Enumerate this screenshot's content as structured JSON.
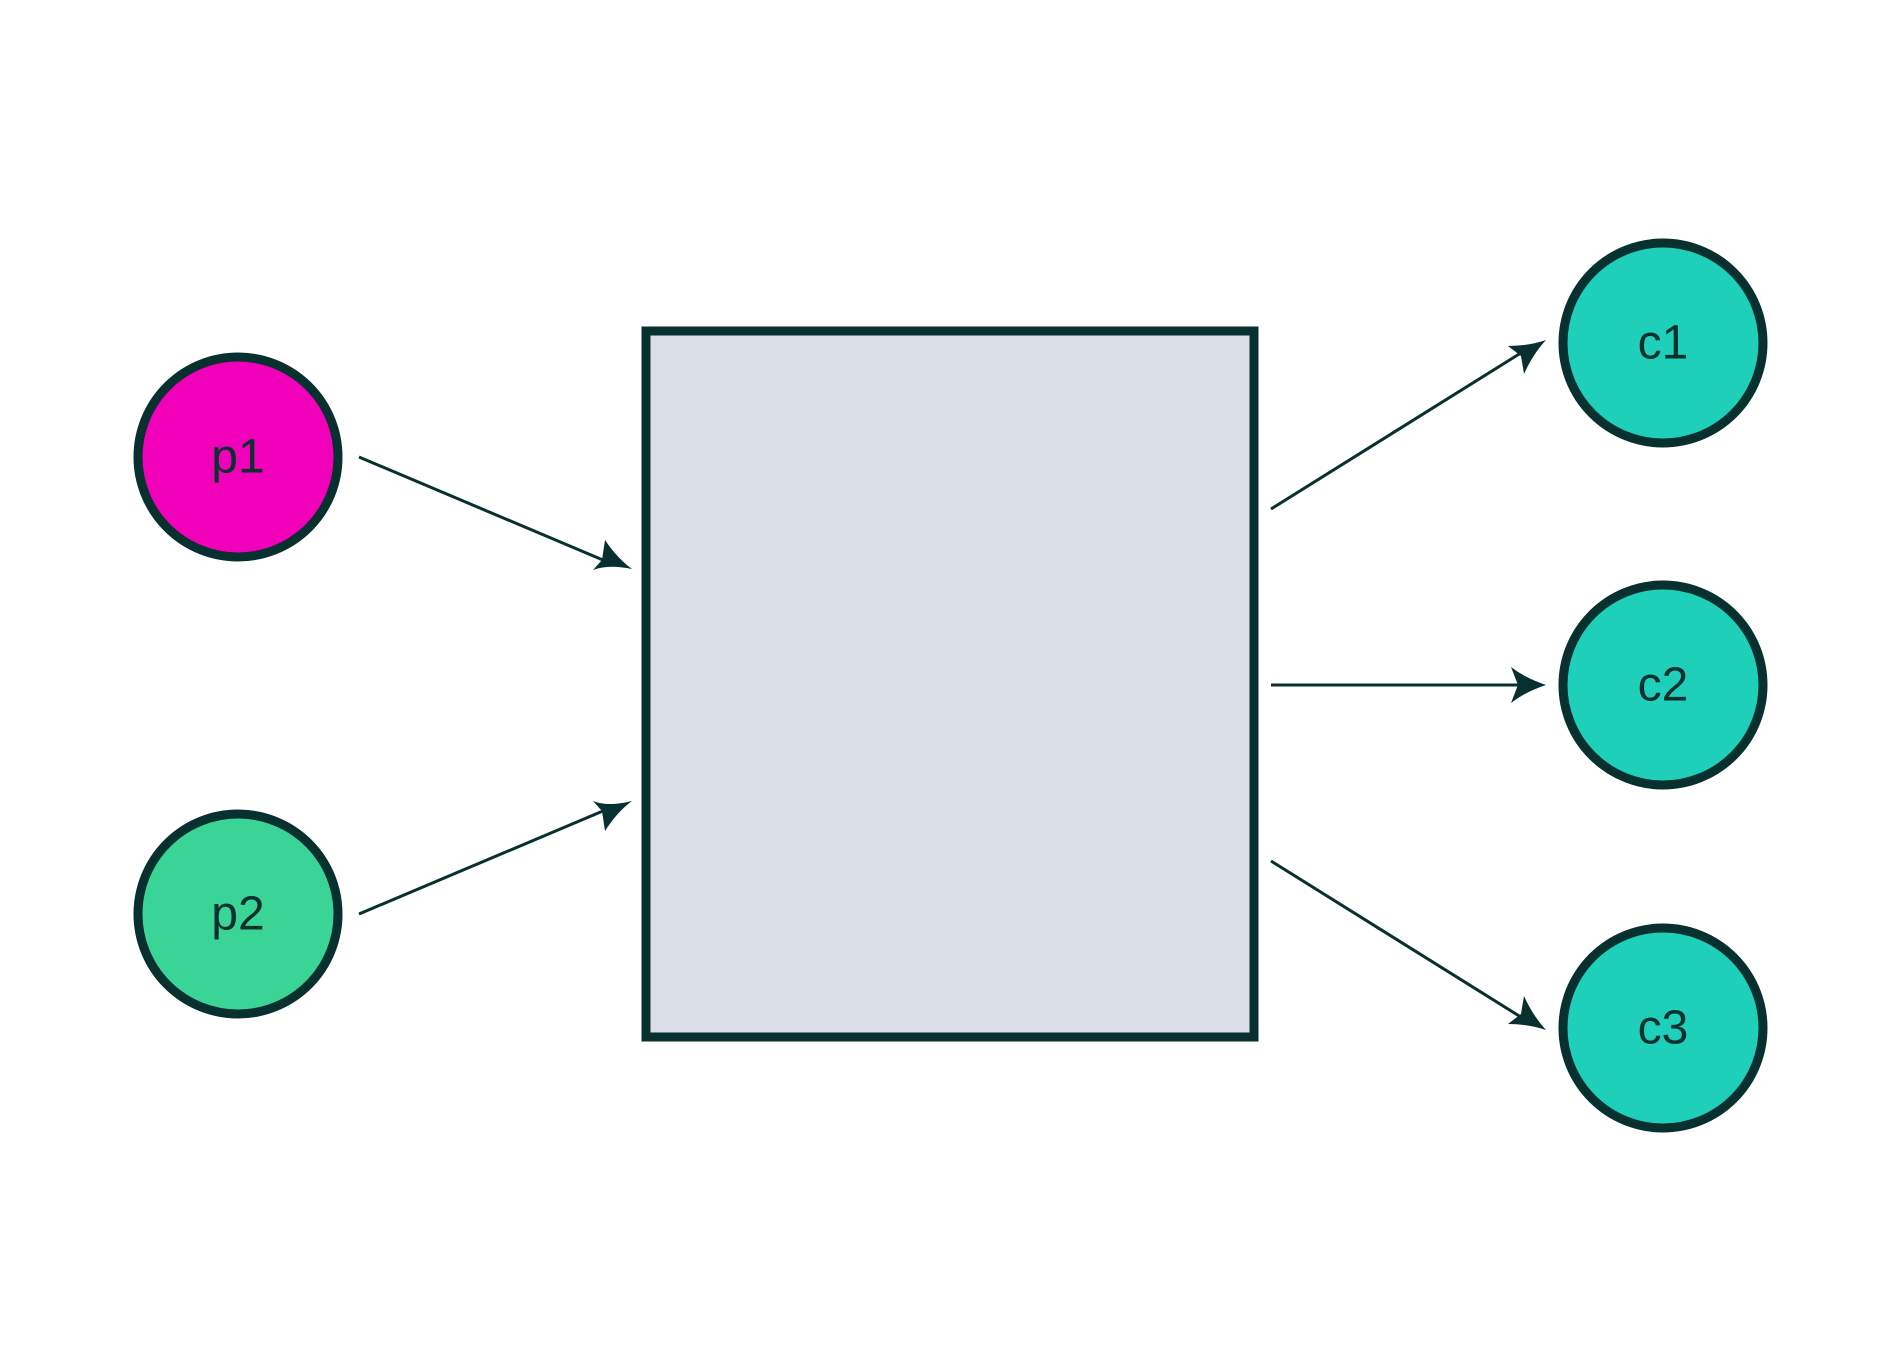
{
  "diagram": {
    "type": "flow",
    "colors": {
      "stroke": "#07302e",
      "background": "#ffffff",
      "box_fill": "#d9dee6",
      "producer_1": "#f000b8",
      "producer_2": "#3ad596",
      "consumer": "#1ecfba",
      "label": "#07302e"
    },
    "central_box": {
      "name": "central-box",
      "label": ""
    },
    "producers": [
      {
        "id": "p1",
        "label": "p1",
        "color_key": "producer_1"
      },
      {
        "id": "p2",
        "label": "p2",
        "color_key": "producer_2"
      }
    ],
    "consumers": [
      {
        "id": "c1",
        "label": "c1",
        "color_key": "consumer"
      },
      {
        "id": "c2",
        "label": "c2",
        "color_key": "consumer"
      },
      {
        "id": "c3",
        "label": "c3",
        "color_key": "consumer"
      }
    ],
    "edges": [
      {
        "from": "p1",
        "to": "central-box"
      },
      {
        "from": "p2",
        "to": "central-box"
      },
      {
        "from": "central-box",
        "to": "c1"
      },
      {
        "from": "central-box",
        "to": "c2"
      },
      {
        "from": "central-box",
        "to": "c3"
      }
    ]
  }
}
